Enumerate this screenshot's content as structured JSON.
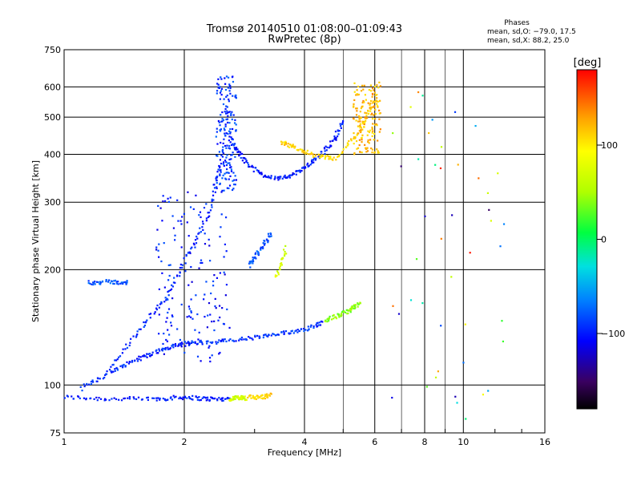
{
  "chart_data": {
    "type": "scatter",
    "title": "Tromsø 20140510 01:08:00–01:09:43",
    "subtitle": "RwPretec (8p)",
    "xlabel": "Frequency [MHz]",
    "ylabel": "Stationary phase Virtual Height [km]",
    "x_scale": "log",
    "y_scale": "log",
    "xlim": [
      1,
      16
    ],
    "ylim": [
      75,
      750
    ],
    "x_ticks": [
      1,
      2,
      4,
      6,
      8,
      10,
      16
    ],
    "x_tick_labels": [
      "1",
      "2",
      "4",
      "6",
      "8",
      "10",
      "16"
    ],
    "x_grid": [
      2,
      4,
      6,
      8,
      10
    ],
    "x_minor_grid": [
      5,
      7,
      9
    ],
    "y_ticks": [
      75,
      100,
      200,
      300,
      400,
      500,
      600,
      750
    ],
    "y_tick_labels": [
      "75",
      "100",
      "200",
      "300",
      "400",
      "500",
      "600",
      "750"
    ],
    "y_grid": [
      100,
      200,
      300,
      400,
      500,
      600
    ],
    "grid": true,
    "stats": {
      "heading": "Phases",
      "line_o": "mean, sd,O: −79.0, 17.5",
      "line_x": "mean, sd,X:  88.2, 25.0"
    },
    "colorbar": {
      "label": "[deg]",
      "range": [
        -180,
        180
      ],
      "ticks": [
        100,
        0,
        -100
      ],
      "tick_labels": [
        "100",
        "0",
        "−100"
      ]
    },
    "traces": [
      {
        "x": [
          1.0,
          1.3,
          1.7,
          2.0,
          2.3,
          2.6
        ],
        "y": [
          93,
          92,
          92,
          93,
          92,
          92
        ],
        "phase": -100
      },
      {
        "x": [
          2.6,
          2.75,
          2.85
        ],
        "y": [
          92,
          93,
          92
        ],
        "phase": 70
      },
      {
        "x": [
          2.9,
          3.1,
          3.3
        ],
        "y": [
          93,
          93,
          94
        ],
        "phase": 110
      },
      {
        "x": [
          1.1,
          1.3,
          1.5,
          1.7,
          1.9,
          2.1
        ],
        "y": [
          98,
          108,
          116,
          122,
          127,
          129
        ],
        "phase": -95
      },
      {
        "x": [
          2.1,
          2.5,
          3.0,
          3.5,
          4.0,
          4.5
        ],
        "y": [
          129,
          130,
          133,
          136,
          140,
          146
        ],
        "phase": -90
      },
      {
        "x": [
          4.5,
          4.9,
          5.2,
          5.5
        ],
        "y": [
          148,
          152,
          157,
          163
        ],
        "phase": 40
      },
      {
        "x": [
          1.3,
          1.55,
          1.8,
          2.05,
          2.3,
          2.5,
          2.6
        ],
        "y": [
          110,
          140,
          170,
          220,
          280,
          400,
          620
        ],
        "phase": -95
      },
      {
        "x": [
          2.6,
          2.8,
          3.1,
          3.5,
          3.9,
          4.3,
          4.7,
          5.0
        ],
        "y": [
          440,
          390,
          355,
          345,
          362,
          390,
          430,
          490
        ],
        "phase": -100
      },
      {
        "x": [
          3.5,
          3.8,
          4.3,
          4.8,
          5.5,
          6.0
        ],
        "y": [
          430,
          415,
          395,
          390,
          460,
          560
        ],
        "phase": 110
      },
      {
        "x": [
          2.9,
          3.1,
          3.3
        ],
        "y": [
          205,
          225,
          250
        ],
        "phase": -80
      },
      {
        "x": [
          3.4,
          3.6
        ],
        "y": [
          190,
          230
        ],
        "phase": 70
      },
      {
        "x": [
          1.15,
          1.3,
          1.45
        ],
        "y": [
          185,
          186,
          185
        ],
        "phase": -80
      }
    ],
    "scatter_clouds": [
      {
        "x": [
          1.7,
          2.6
        ],
        "y": [
          115,
          320
        ],
        "phase": -100
      },
      {
        "x": [
          2.4,
          2.7
        ],
        "y": [
          320,
          640
        ],
        "phase": -90
      },
      {
        "x": [
          5.3,
          6.2
        ],
        "y": [
          400,
          620
        ],
        "phase": 120
      },
      {
        "x": [
          6.5,
          13.0
        ],
        "y": [
          80,
          600
        ],
        "phase": 20
      }
    ]
  }
}
